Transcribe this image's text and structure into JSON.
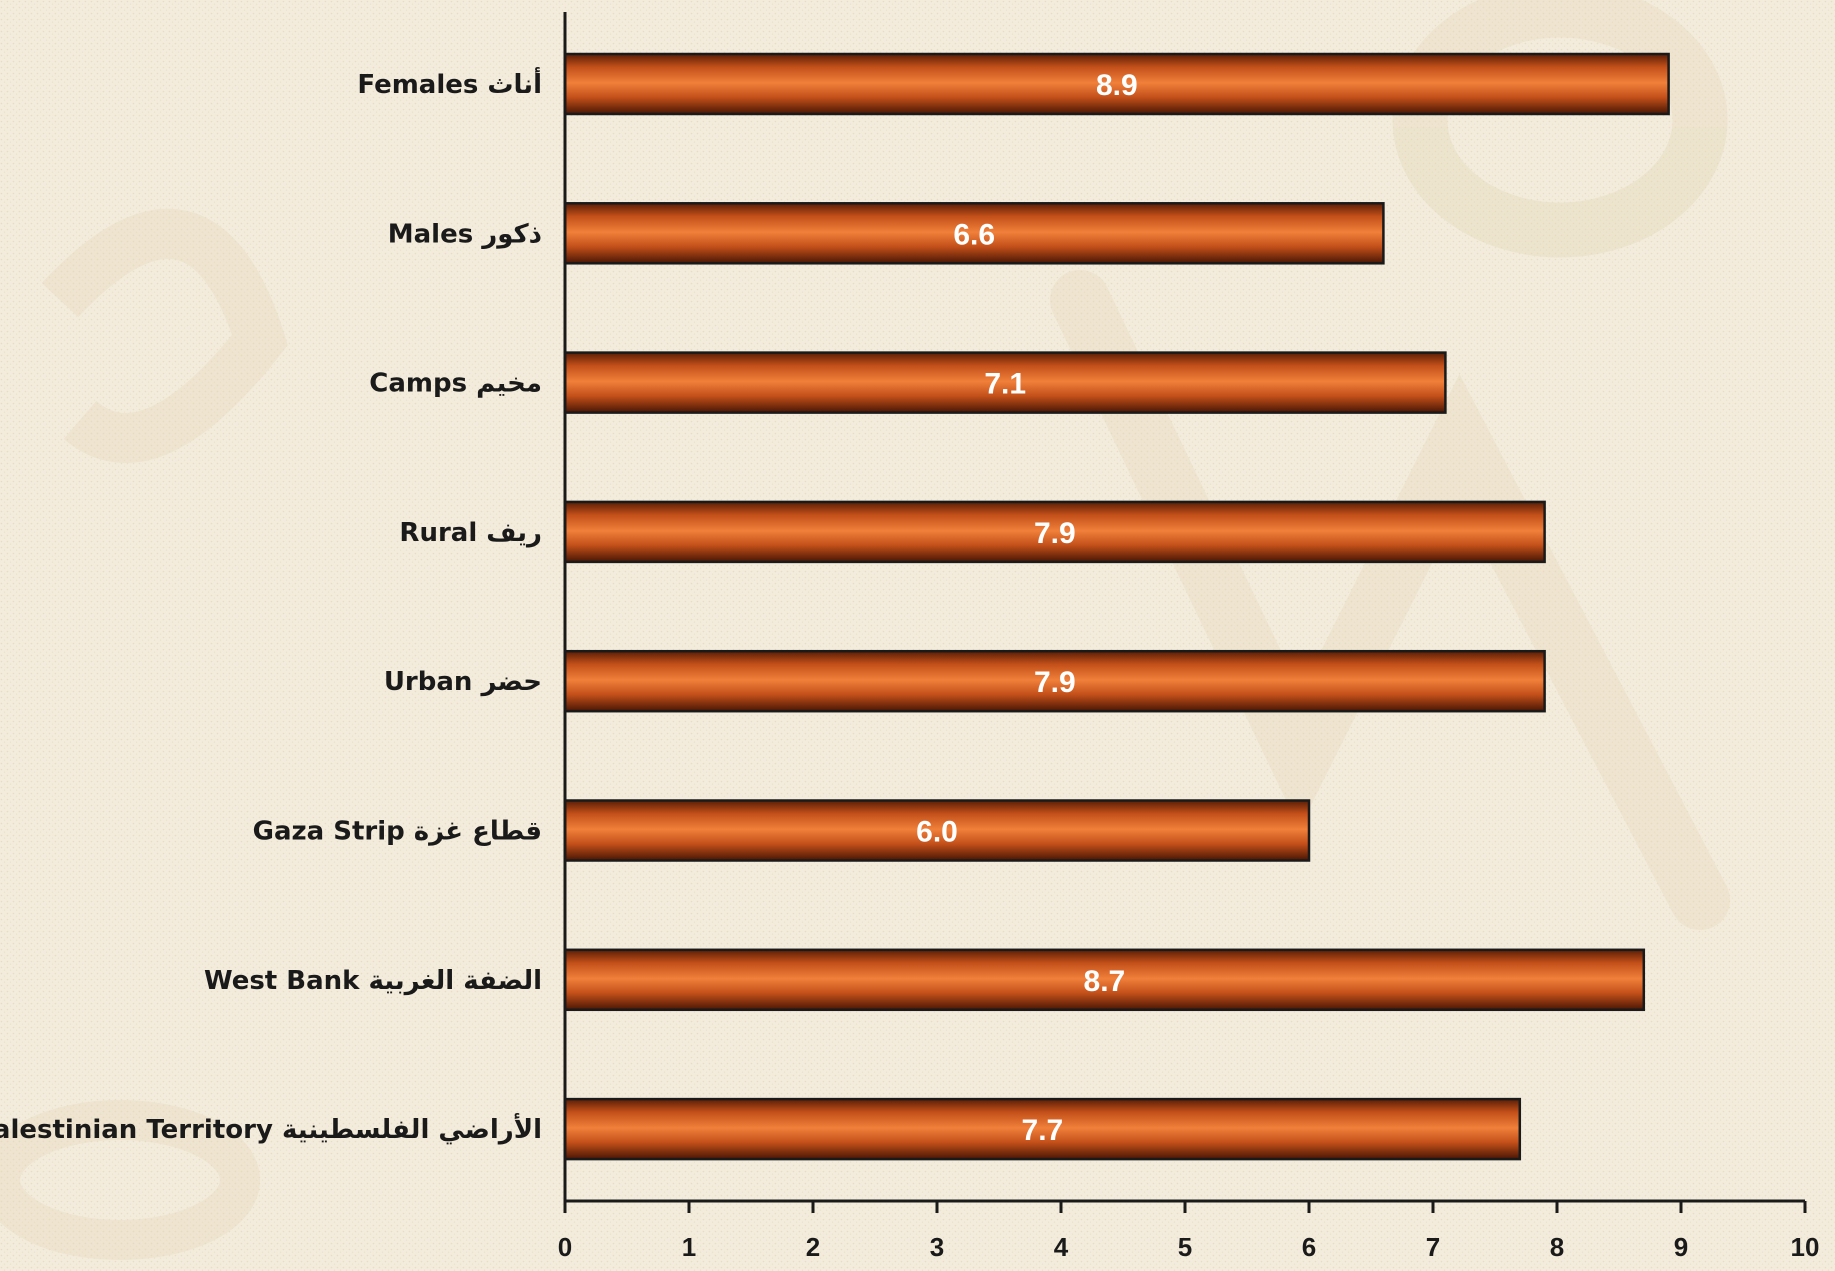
{
  "chart_data": {
    "type": "bar",
    "orientation": "horizontal",
    "categories": [
      "Females  أناث",
      "Males ذكور",
      "Camps  مخيم",
      "Rural  ريف",
      "Urban حضر",
      "Gaza Strip قطاع غزة",
      "West Bank الضفة الغربية",
      "Palestinian  Territory  الأراضي الفلسطينية"
    ],
    "values": [
      8.9,
      6.6,
      7.1,
      7.9,
      7.9,
      6.0,
      8.7,
      7.7
    ],
    "data_labels": [
      "8.9",
      "6.6",
      "7.1",
      "7.9",
      "7.9",
      "6.0",
      "8.7",
      "7.7"
    ],
    "xlim": [
      0,
      10
    ],
    "xticks": [
      "0",
      "1",
      "2",
      "3",
      "4",
      "5",
      "6",
      "7",
      "8",
      "9",
      "10"
    ],
    "title": "",
    "xlabel": "",
    "ylabel": "",
    "grid": false,
    "legend": "none",
    "bar_color": "#c8501a",
    "bar_edge_color": "#1a1a1a",
    "background_color": "#f3ecdc"
  }
}
